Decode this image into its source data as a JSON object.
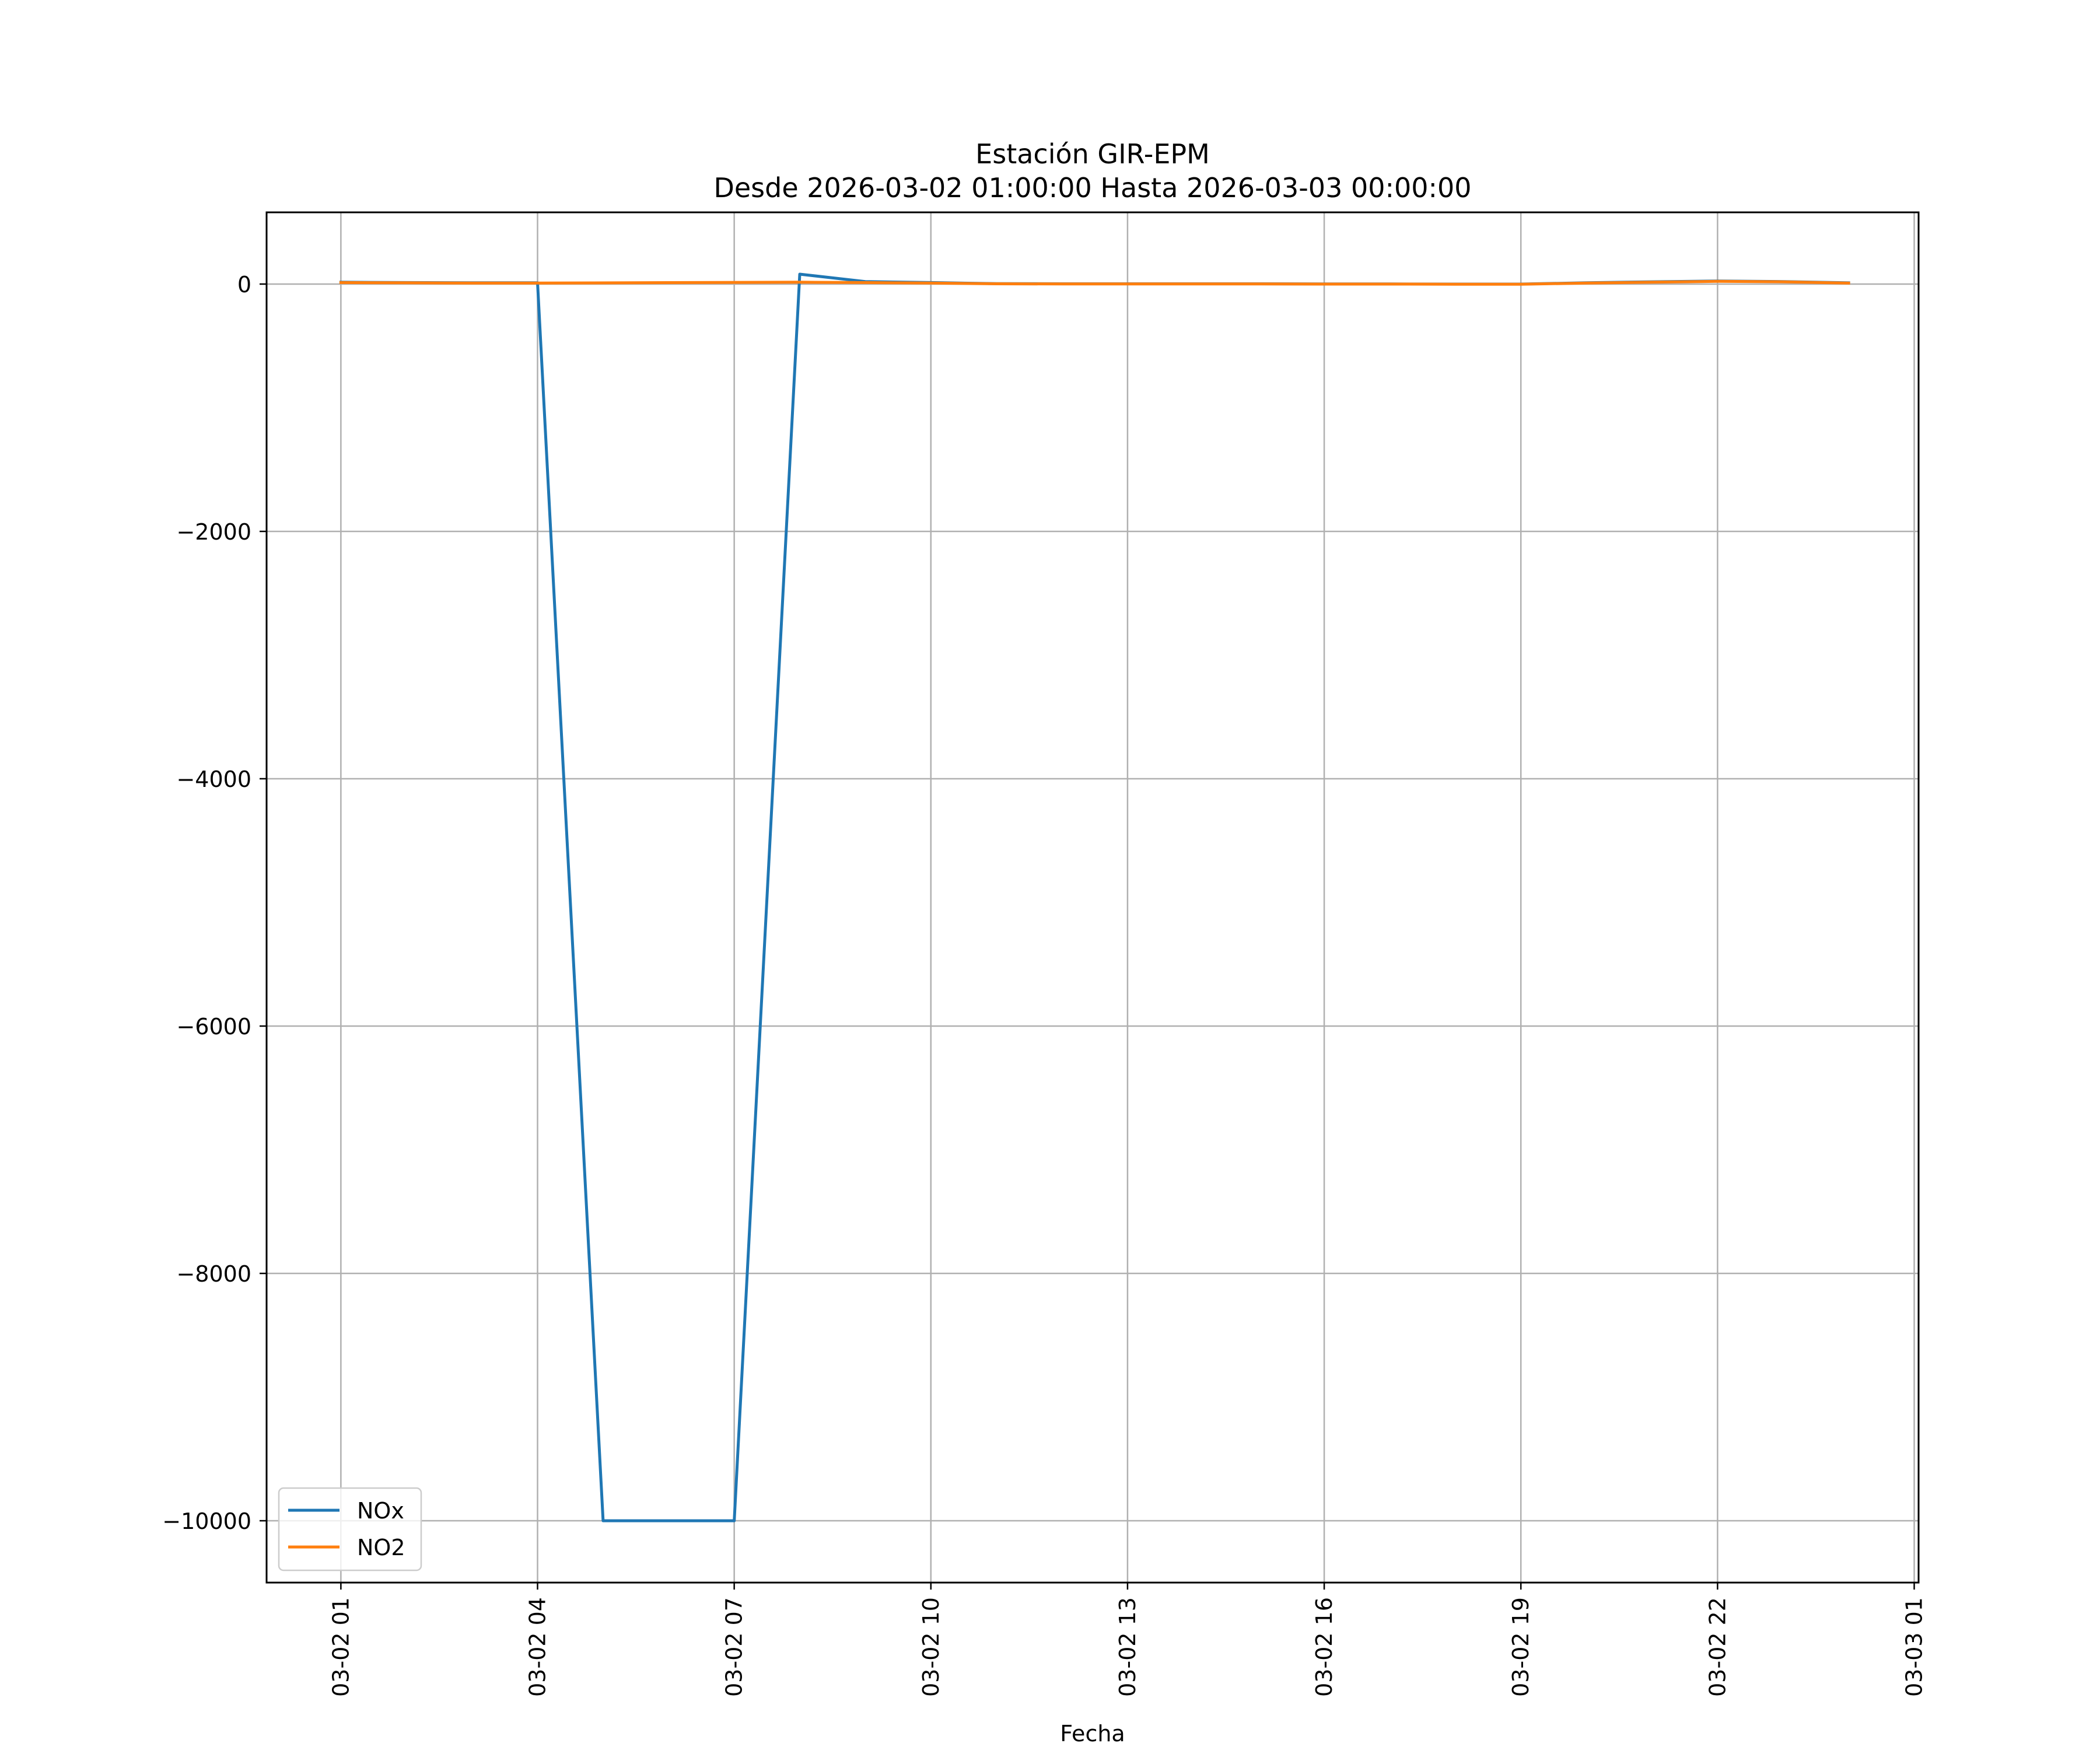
{
  "chart_data": {
    "type": "line",
    "title": "Estación GIR-EPM",
    "subtitle": "Desde 2026-03-02 01:00:00 Hasta 2026-03-03 00:00:00",
    "xlabel": "Fecha",
    "ylabel": "",
    "x_type": "datetime",
    "xlim": [
      "2026-03-01 23:52",
      "2026-03-03 01:04"
    ],
    "ylim": [
      -10500,
      580
    ],
    "x_ticks": [
      {
        "value": "2026-03-02 01:00",
        "label": "03-02 01"
      },
      {
        "value": "2026-03-02 04:00",
        "label": "03-02 04"
      },
      {
        "value": "2026-03-02 07:00",
        "label": "03-02 07"
      },
      {
        "value": "2026-03-02 10:00",
        "label": "03-02 10"
      },
      {
        "value": "2026-03-02 13:00",
        "label": "03-02 13"
      },
      {
        "value": "2026-03-02 16:00",
        "label": "03-02 16"
      },
      {
        "value": "2026-03-02 19:00",
        "label": "03-02 19"
      },
      {
        "value": "2026-03-02 22:00",
        "label": "03-02 22"
      },
      {
        "value": "2026-03-03 01:00",
        "label": "03-03 01"
      }
    ],
    "y_ticks": [
      {
        "value": 0,
        "label": "0"
      },
      {
        "value": -2000,
        "label": "−2000"
      },
      {
        "value": -4000,
        "label": "−4000"
      },
      {
        "value": -6000,
        "label": "−6000"
      },
      {
        "value": -8000,
        "label": "−8000"
      },
      {
        "value": -10000,
        "label": "−10000"
      }
    ],
    "grid": true,
    "legend_position": "lower-left",
    "series": [
      {
        "name": "NOx",
        "color": "#1f77b4",
        "points": [
          {
            "x": "2026-03-02 01:00",
            "y": 15
          },
          {
            "x": "2026-03-02 02:00",
            "y": 12
          },
          {
            "x": "2026-03-02 03:00",
            "y": 10
          },
          {
            "x": "2026-03-02 04:00",
            "y": 10
          },
          {
            "x": "2026-03-02 05:00",
            "y": -10000
          },
          {
            "x": "2026-03-02 06:00",
            "y": -10000
          },
          {
            "x": "2026-03-02 07:00",
            "y": -10000
          },
          {
            "x": "2026-03-02 08:00",
            "y": 80
          },
          {
            "x": "2026-03-02 09:00",
            "y": 20
          },
          {
            "x": "2026-03-02 10:00",
            "y": 12
          },
          {
            "x": "2026-03-02 11:00",
            "y": 3
          },
          {
            "x": "2026-03-02 12:00",
            "y": 2
          },
          {
            "x": "2026-03-02 13:00",
            "y": 2
          },
          {
            "x": "2026-03-02 14:00",
            "y": 2
          },
          {
            "x": "2026-03-02 15:00",
            "y": 2
          },
          {
            "x": "2026-03-02 16:00",
            "y": 1
          },
          {
            "x": "2026-03-02 17:00",
            "y": 1
          },
          {
            "x": "2026-03-02 18:00",
            "y": 0
          },
          {
            "x": "2026-03-02 19:00",
            "y": 0
          },
          {
            "x": "2026-03-02 20:00",
            "y": 10
          },
          {
            "x": "2026-03-02 21:00",
            "y": 18
          },
          {
            "x": "2026-03-02 22:00",
            "y": 25
          },
          {
            "x": "2026-03-02 23:00",
            "y": 20
          },
          {
            "x": "2026-03-03 00:00",
            "y": 10
          }
        ]
      },
      {
        "name": "NO2",
        "color": "#ff7f0e",
        "points": [
          {
            "x": "2026-03-02 01:00",
            "y": 12
          },
          {
            "x": "2026-03-02 02:00",
            "y": 10
          },
          {
            "x": "2026-03-02 03:00",
            "y": 8
          },
          {
            "x": "2026-03-02 04:00",
            "y": 8
          },
          {
            "x": "2026-03-02 08:00",
            "y": 15
          },
          {
            "x": "2026-03-02 09:00",
            "y": 12
          },
          {
            "x": "2026-03-02 10:00",
            "y": 8
          },
          {
            "x": "2026-03-02 11:00",
            "y": 2
          },
          {
            "x": "2026-03-02 12:00",
            "y": 1
          },
          {
            "x": "2026-03-02 13:00",
            "y": 1
          },
          {
            "x": "2026-03-02 14:00",
            "y": 1
          },
          {
            "x": "2026-03-02 15:00",
            "y": 1
          },
          {
            "x": "2026-03-02 16:00",
            "y": 0
          },
          {
            "x": "2026-03-02 17:00",
            "y": 0
          },
          {
            "x": "2026-03-02 18:00",
            "y": -1
          },
          {
            "x": "2026-03-02 19:00",
            "y": -1
          },
          {
            "x": "2026-03-02 20:00",
            "y": 8
          },
          {
            "x": "2026-03-02 21:00",
            "y": 15
          },
          {
            "x": "2026-03-02 22:00",
            "y": 22
          },
          {
            "x": "2026-03-02 23:00",
            "y": 18
          },
          {
            "x": "2026-03-03 00:00",
            "y": 8
          }
        ]
      }
    ]
  }
}
